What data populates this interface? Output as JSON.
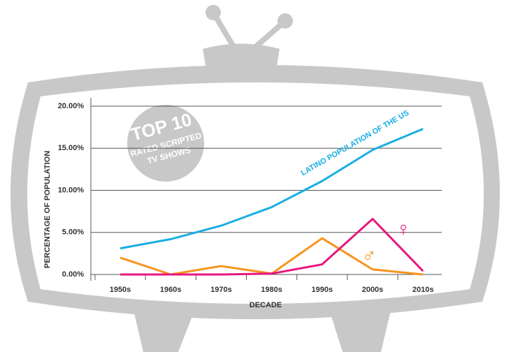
{
  "chart_data": {
    "type": "line",
    "ylabel": "PERCENTAGE OF POPULATION",
    "xlabel": "DECADE",
    "annotations": [
      "TOP 10",
      "RATED SCRIPTED",
      "TV SHOWS"
    ],
    "categories": [
      "1950s",
      "1960s",
      "1970s",
      "1980s",
      "1990s",
      "2000s",
      "2010s"
    ],
    "series": [
      {
        "name": "LATINO POPULATION OF THE US",
        "color": "#1aaee5",
        "values": [
          3.1,
          4.2,
          5.8,
          8.0,
          11.1,
          14.8,
          17.3
        ]
      },
      {
        "name": "♂",
        "color": "#f7941d",
        "values": [
          2.0,
          0,
          1.0,
          0.1,
          4.3,
          0.6,
          0
        ]
      },
      {
        "name": "♀",
        "color": "#e6177f",
        "values": [
          0,
          0,
          0,
          0.1,
          1.2,
          6.6,
          0.4
        ]
      }
    ],
    "ylim": [
      0,
      20
    ],
    "yticks": [
      {
        "value": 0,
        "label": "0.00%"
      },
      {
        "value": 5,
        "label": "5.00%"
      },
      {
        "value": 10,
        "label": "10.00%"
      },
      {
        "value": 15,
        "label": "15.00%"
      },
      {
        "value": 20,
        "label": "20.00%"
      }
    ],
    "grid": true
  }
}
